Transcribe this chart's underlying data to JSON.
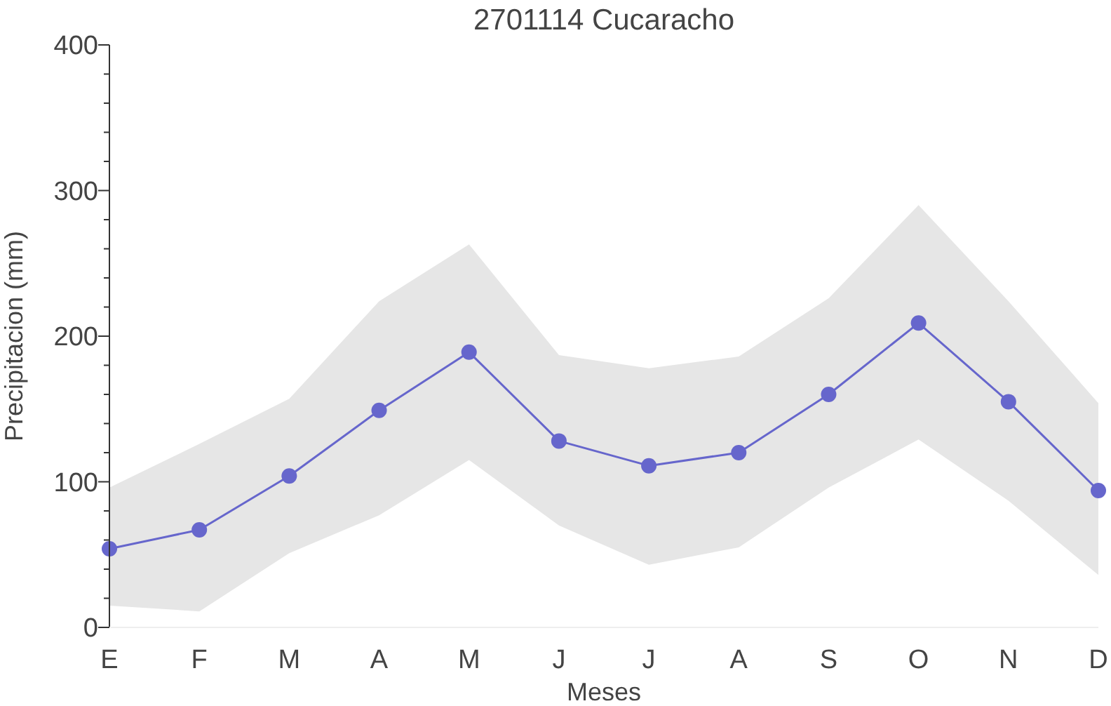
{
  "chart_data": {
    "type": "line",
    "title": "2701114 Cucaracho",
    "xlabel": "Meses",
    "ylabel": "Precipitacion (mm)",
    "categories": [
      "E",
      "F",
      "M",
      "A",
      "M",
      "J",
      "J",
      "A",
      "S",
      "O",
      "N",
      "D"
    ],
    "series": [
      {
        "color": "#6666cc",
        "values": [
          54,
          67,
          104,
          149,
          189,
          128,
          111,
          120,
          160,
          209,
          155,
          94
        ],
        "lower": [
          15,
          11,
          51,
          77,
          115,
          70,
          43,
          55,
          96,
          129,
          87,
          36
        ],
        "upper": [
          96,
          126,
          157,
          224,
          263,
          187,
          178,
          186,
          226,
          290,
          224,
          154
        ]
      }
    ],
    "ylim": [
      0,
      400
    ],
    "yticks": [
      0,
      {
        "value": 20,
        "label": null
      },
      {
        "value": 40,
        "label": null
      },
      {
        "value": 60,
        "label": null
      },
      {
        "value": 80,
        "label": null
      },
      100,
      {
        "value": 120,
        "label": null
      },
      {
        "value": 140,
        "label": null
      },
      {
        "value": 160,
        "label": null
      },
      {
        "value": 180,
        "label": null
      },
      200,
      {
        "value": 220,
        "label": null
      },
      {
        "value": 240,
        "label": null
      },
      {
        "value": 260,
        "label": null
      },
      {
        "value": 280,
        "label": null
      },
      300,
      {
        "value": 320,
        "label": null
      },
      {
        "value": 340,
        "label": null
      },
      {
        "value": 360,
        "label": null
      },
      {
        "value": 380,
        "label": null
      },
      400
    ],
    "marker": "circle",
    "line_style": "solid",
    "grid": false
  }
}
